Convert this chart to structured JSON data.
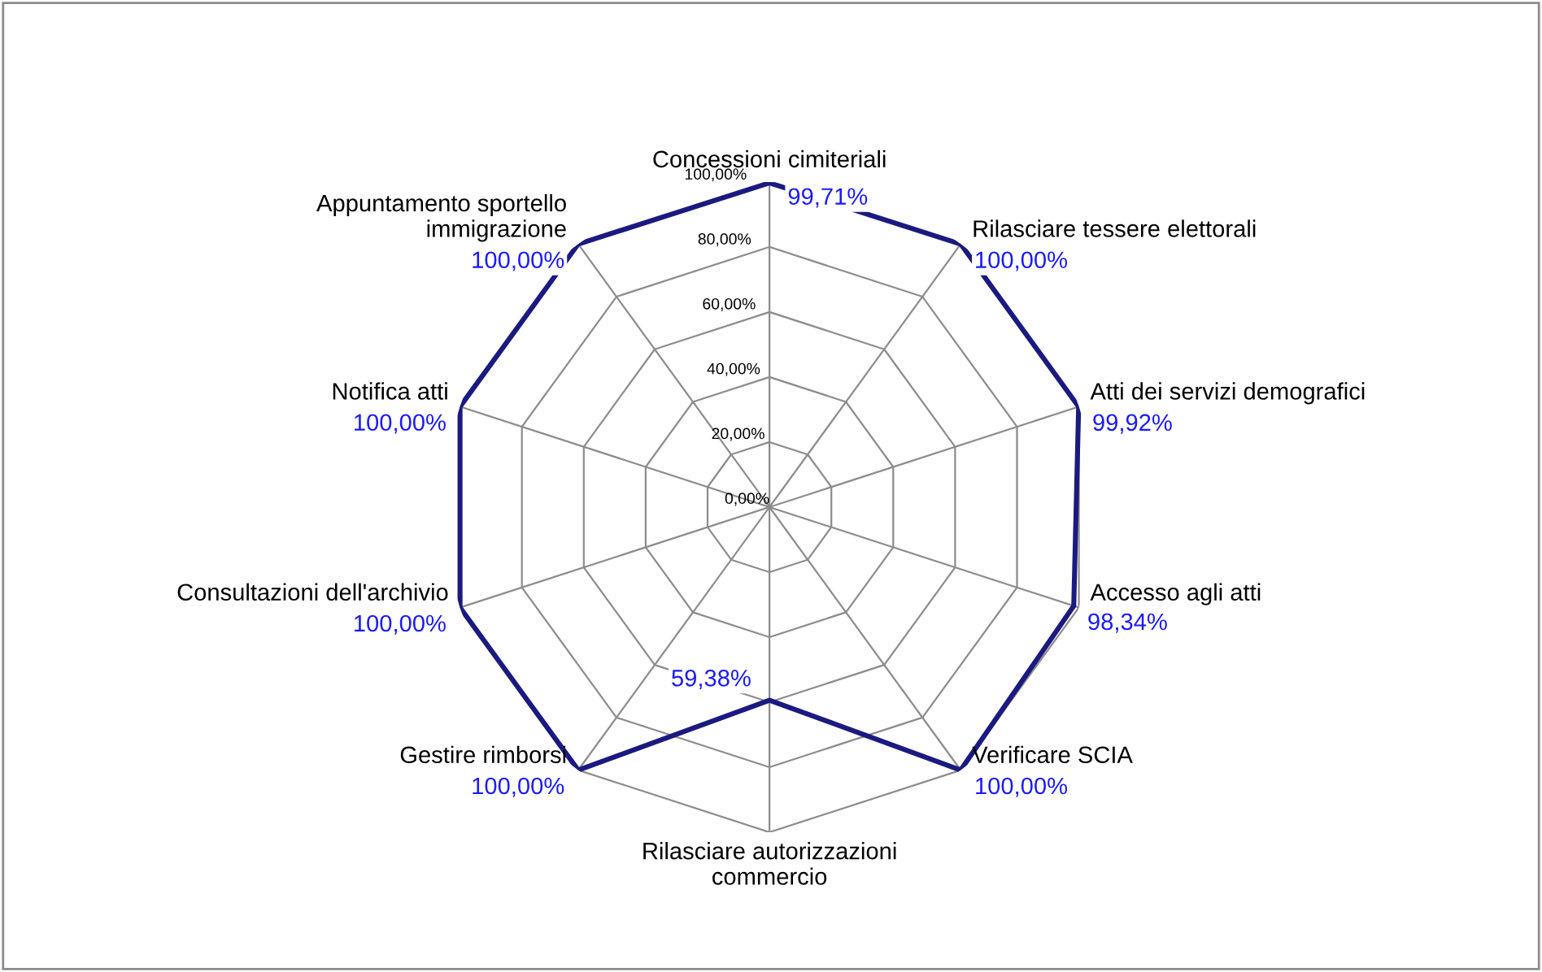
{
  "chart_data": {
    "type": "radar",
    "categories": [
      "Concessioni cimiteriali",
      "Rilasciare tessere elettorali",
      "Atti dei servizi demografici",
      "Accesso agli atti",
      "Verificare SCIA",
      "Rilasciare autorizzazioni\ncommercio",
      "Gestire rimborsi",
      "Consultazioni dell'archivio",
      "Notifica atti",
      "Appuntamento sportello\nimmigrazione"
    ],
    "series": [
      {
        "color": "#1a1a80",
        "values": [
          99.71,
          100,
          99.92,
          98.34,
          100,
          59.38,
          100,
          100,
          100,
          100
        ],
        "value_labels": [
          "99,71%",
          "100,00%",
          "99,92%",
          "98,34%",
          "100,00%",
          "59,38%",
          "100,00%",
          "100,00%",
          "100,00%",
          "100,00%"
        ]
      }
    ],
    "ylim": [
      0,
      100
    ],
    "yticks": [
      {
        "value": 0,
        "label": "0,00%"
      },
      {
        "value": 20,
        "label": "20,00%"
      },
      {
        "value": 40,
        "label": "40,00%"
      },
      {
        "value": 60,
        "label": "60,00%"
      },
      {
        "value": 80,
        "label": "80,00%"
      },
      {
        "value": 100,
        "label": "100,00%"
      }
    ],
    "grid": true,
    "marker": "none",
    "line_style": "solid"
  }
}
